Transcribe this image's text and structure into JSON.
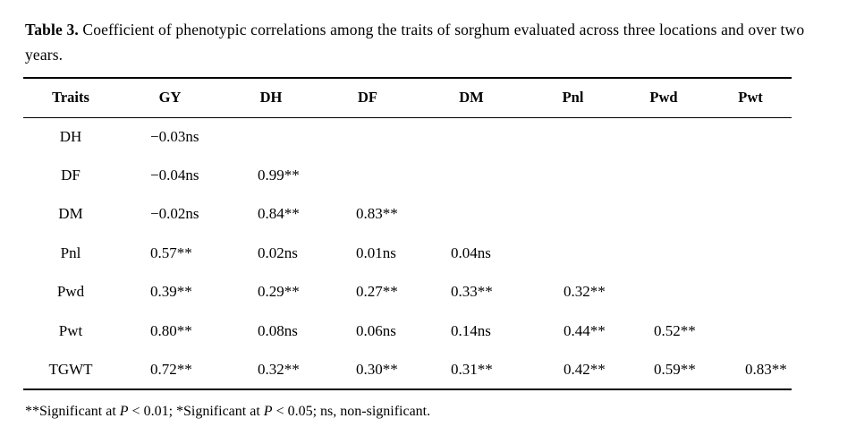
{
  "caption": {
    "label": "Table 3.",
    "text": "Coefficient of phenotypic correlations among the traits of sorghum evaluated across three locations and over two years."
  },
  "table": {
    "headers": [
      "Traits",
      "GY",
      "DH",
      "DF",
      "DM",
      "Pnl",
      "Pwd",
      "Pwt"
    ],
    "rows": [
      {
        "trait": "DH",
        "values": [
          "−0.03ns",
          "",
          "",
          "",
          "",
          "",
          ""
        ]
      },
      {
        "trait": "DF",
        "values": [
          "−0.04ns",
          "0.99**",
          "",
          "",
          "",
          "",
          ""
        ]
      },
      {
        "trait": "DM",
        "values": [
          "−0.02ns",
          "0.84**",
          "0.83**",
          "",
          "",
          "",
          ""
        ]
      },
      {
        "trait": "Pnl",
        "values": [
          "0.57**",
          "0.02ns",
          "0.01ns",
          "0.04ns",
          "",
          "",
          ""
        ]
      },
      {
        "trait": "Pwd",
        "values": [
          "0.39**",
          "0.29**",
          "0.27**",
          "0.33**",
          "0.32**",
          "",
          ""
        ]
      },
      {
        "trait": "Pwt",
        "values": [
          "0.80**",
          "0.08ns",
          "0.06ns",
          "0.14ns",
          "0.44**",
          "0.52**",
          ""
        ]
      },
      {
        "trait": "TGWT",
        "values": [
          "0.72**",
          "0.32**",
          "0.30**",
          "0.31**",
          "0.42**",
          "0.59**",
          "0.83**"
        ]
      }
    ]
  },
  "footnote": {
    "part1": "**Significant at ",
    "p1": "P",
    "part2": " < 0.01; *Significant at ",
    "p2": "P",
    "part3": " < 0.05; ns, non-significant."
  }
}
